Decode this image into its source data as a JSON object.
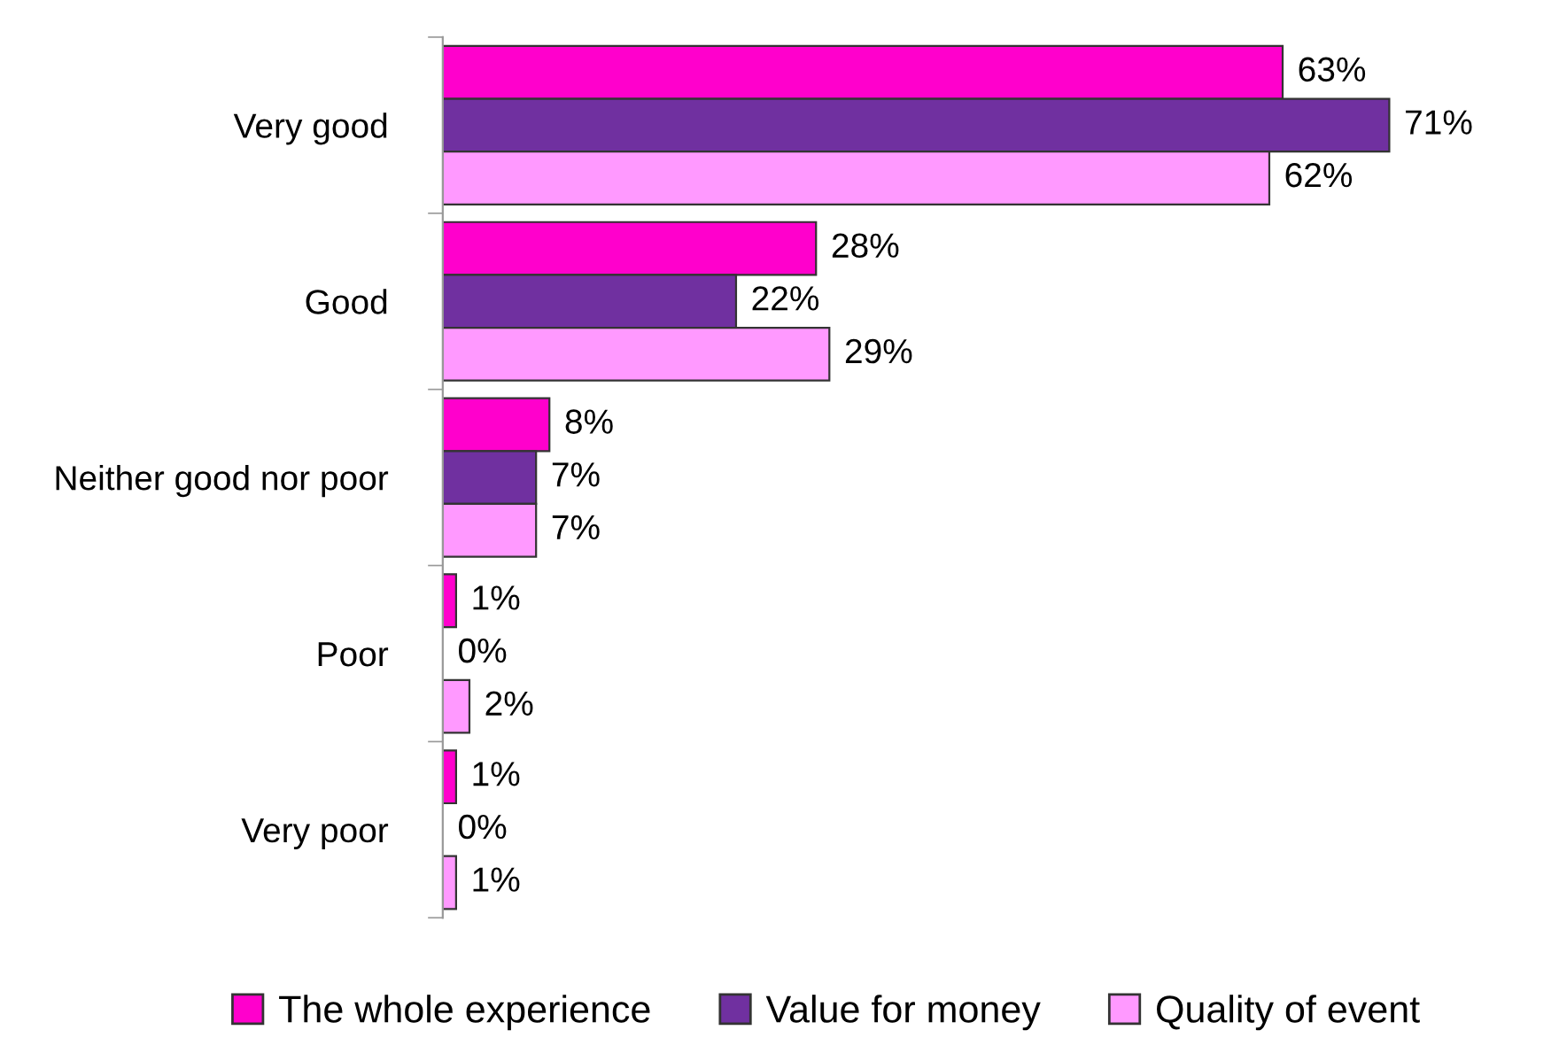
{
  "chart_data": {
    "type": "bar",
    "orientation": "horizontal",
    "categories": [
      "Very good",
      "Good",
      "Neither good nor poor",
      "Poor",
      "Very poor"
    ],
    "series": [
      {
        "name": "The whole experience",
        "color": "#ff00cc",
        "values": [
          63,
          28,
          8,
          1,
          1
        ],
        "value_labels": [
          "63%",
          "28%",
          "8%",
          "1%",
          "1%"
        ]
      },
      {
        "name": "Value for money",
        "color": "#7030a0",
        "values": [
          71,
          22,
          7,
          0,
          0
        ],
        "value_labels": [
          "71%",
          "22%",
          "7%",
          "0%",
          "0%"
        ]
      },
      {
        "name": "Quality of event",
        "color": "#ff99ff",
        "values": [
          62,
          29,
          7,
          2,
          1
        ],
        "value_labels": [
          "62%",
          "29%",
          "7%",
          "2%",
          "1%"
        ]
      }
    ],
    "legend": "bottom",
    "grid": false
  }
}
